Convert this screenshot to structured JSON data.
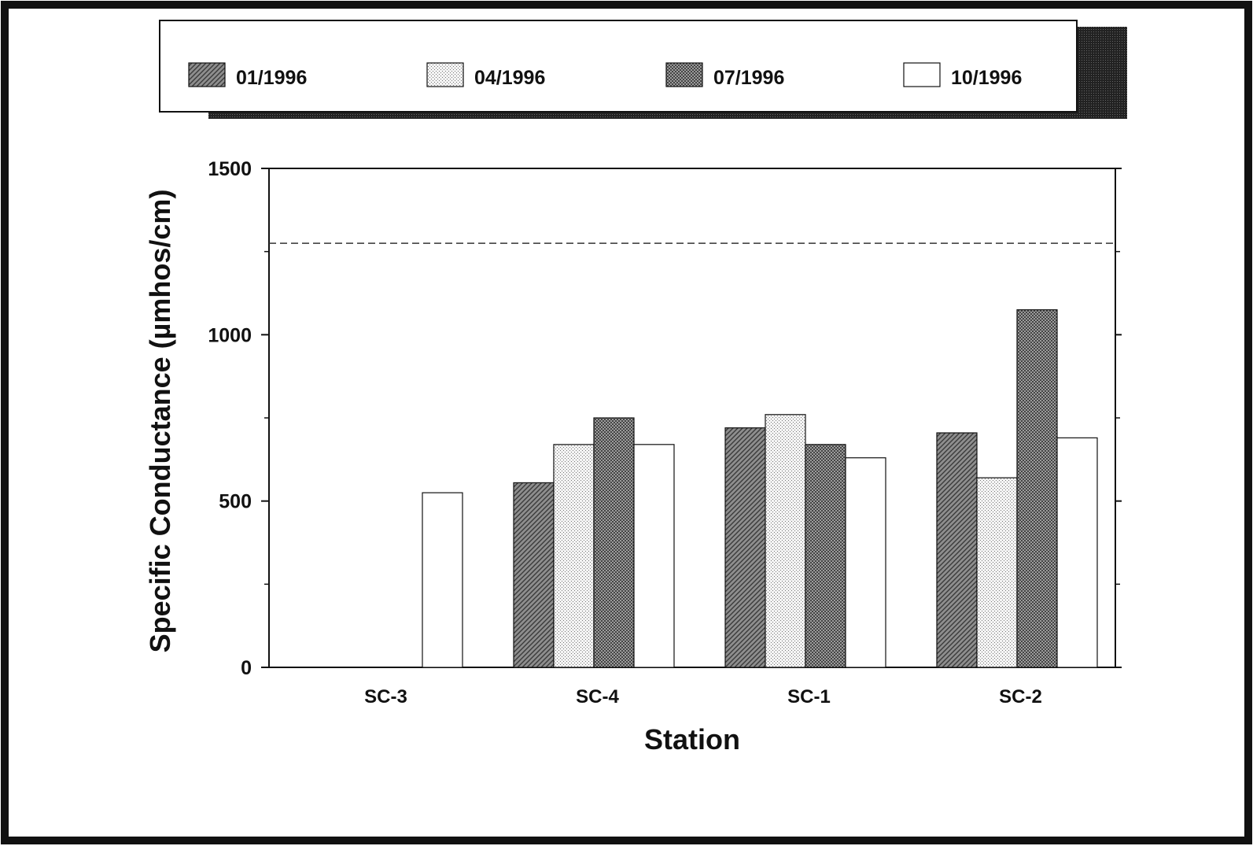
{
  "chart_data": {
    "type": "bar",
    "title": "",
    "xlabel": "Station",
    "ylabel": "Specific Conductance (µmhos/cm)",
    "categories": [
      "SC-3",
      "SC-4",
      "SC-1",
      "SC-2"
    ],
    "series": [
      {
        "name": "01/1996",
        "values": [
          null,
          555,
          720,
          705
        ]
      },
      {
        "name": "04/1996",
        "values": [
          null,
          670,
          760,
          570
        ]
      },
      {
        "name": "07/1996",
        "values": [
          null,
          750,
          670,
          1075
        ]
      },
      {
        "name": "10/1996",
        "values": [
          525,
          670,
          630,
          690
        ]
      }
    ],
    "ylim": [
      0,
      1500
    ],
    "yticks": [
      0,
      500,
      1000,
      1500
    ],
    "ytick_labels": [
      "0",
      "500",
      "1000",
      "1500"
    ],
    "reference_line": {
      "value": 1275,
      "style": "dashed"
    },
    "grid": false,
    "legend_position": "top"
  },
  "colors": {
    "frame": "#111111",
    "shadow": "#1a1a1a",
    "series_fills": [
      "#8a8a8a",
      "#e6e6e6",
      "#a9a9a9",
      "#ffffff"
    ]
  }
}
